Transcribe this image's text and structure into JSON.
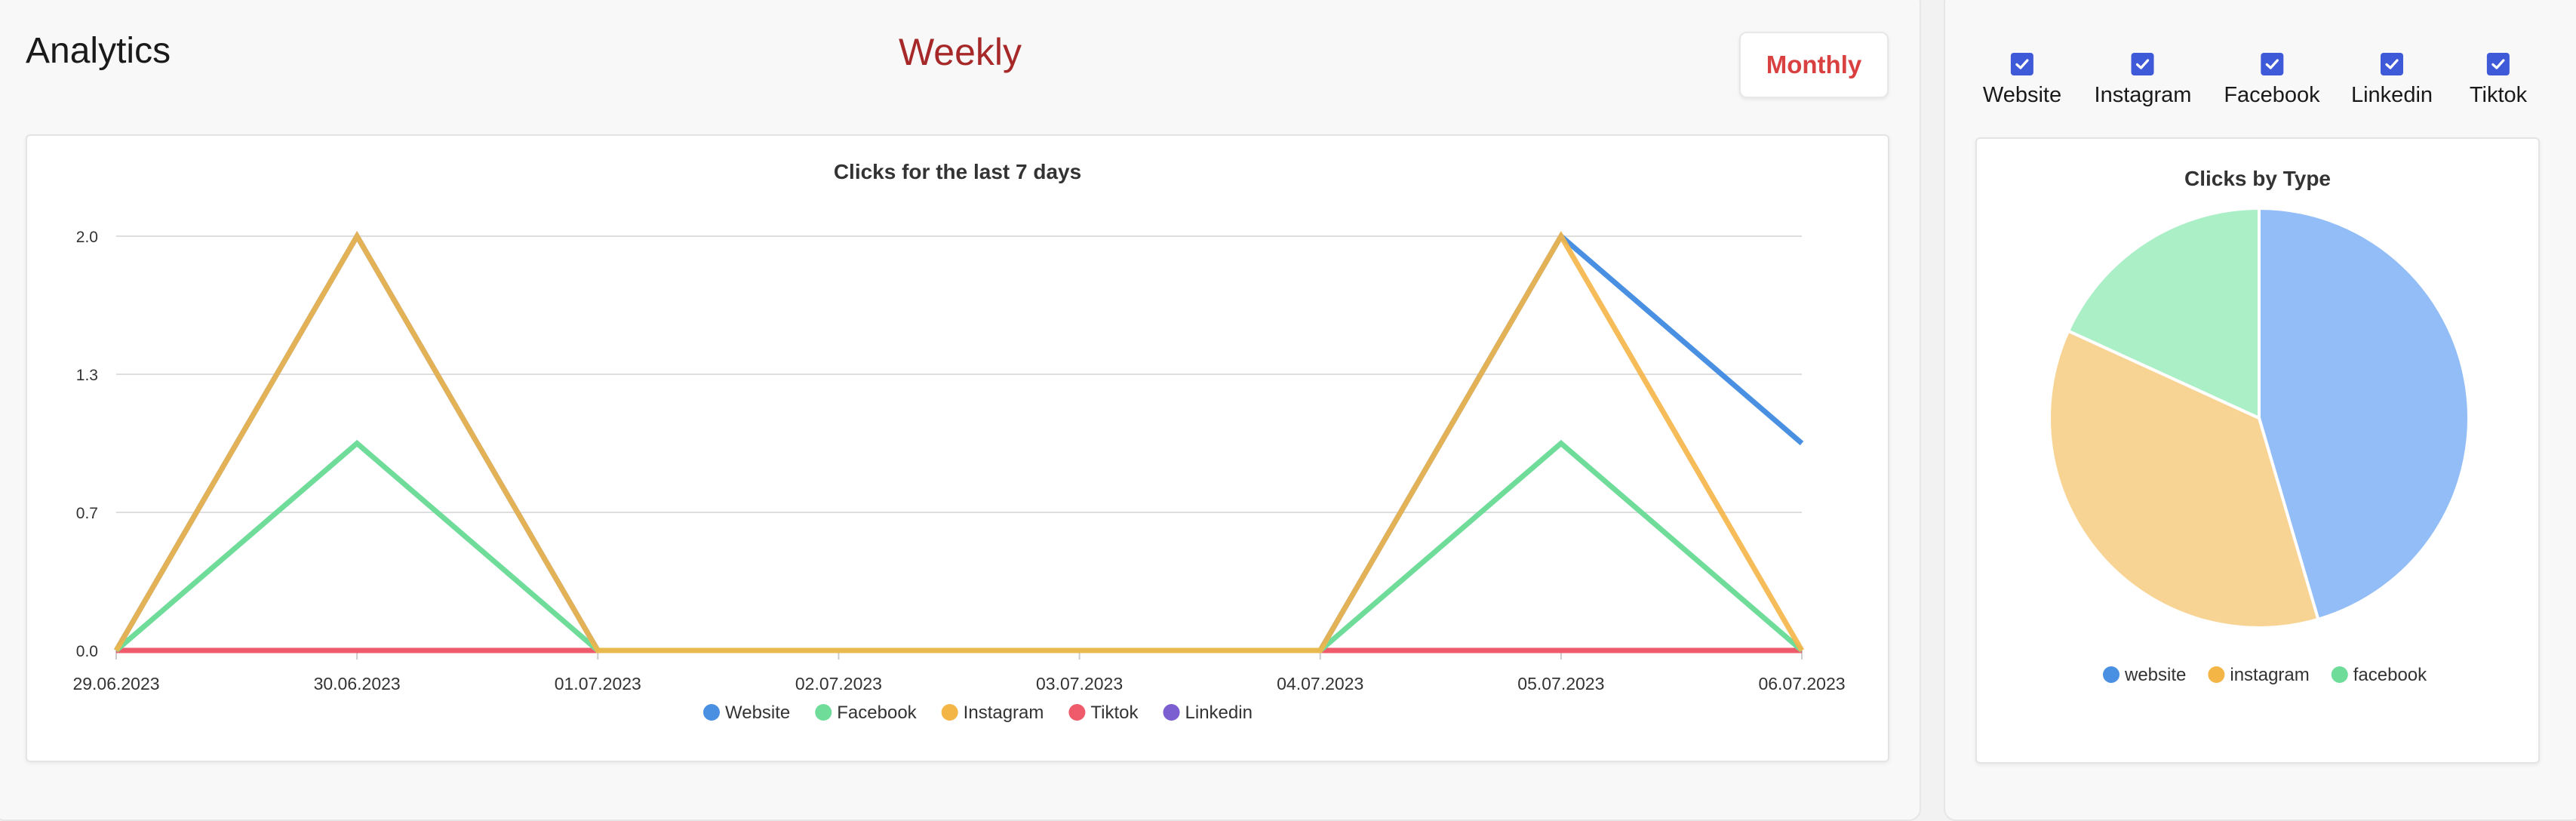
{
  "header": {
    "title": "Analytics",
    "period_label": "Weekly",
    "monthly_button": "Monthly"
  },
  "filters": [
    {
      "label": "Website",
      "checked": true
    },
    {
      "label": "Instagram",
      "checked": true
    },
    {
      "label": "Facebook",
      "checked": true
    },
    {
      "label": "Linkedin",
      "checked": true
    },
    {
      "label": "Tiktok",
      "checked": true
    }
  ],
  "chart_data": [
    {
      "type": "line",
      "title": "Clicks for the last 7 days",
      "categories": [
        "29.06.2023",
        "30.06.2023",
        "01.07.2023",
        "02.07.2023",
        "03.07.2023",
        "04.07.2023",
        "05.07.2023",
        "06.07.2023"
      ],
      "yticks": [
        "2.0",
        "1.3",
        "0.7",
        "0.0"
      ],
      "ylim": [
        0,
        2
      ],
      "grid": true,
      "legend_position": "bottom",
      "series": [
        {
          "name": "Website",
          "color": "#4a90e2",
          "values": [
            0,
            2,
            0,
            0,
            0,
            0,
            2,
            1
          ]
        },
        {
          "name": "Facebook",
          "color": "#6fdc9a",
          "values": [
            0,
            1,
            0,
            0,
            0,
            0,
            1,
            0
          ]
        },
        {
          "name": "Instagram",
          "color": "#f4b547",
          "values": [
            0,
            2,
            0,
            0,
            0,
            0,
            2,
            0
          ]
        },
        {
          "name": "Tiktok",
          "color": "#ef5b6b",
          "values": [
            0,
            0,
            0,
            0,
            0,
            0,
            0,
            0
          ]
        },
        {
          "name": "Linkedin",
          "color": "#7b5fd0",
          "values": [
            0,
            0,
            0,
            0,
            0,
            0,
            0,
            0
          ]
        }
      ]
    },
    {
      "type": "pie",
      "title": "Clicks by Type",
      "legend_position": "bottom",
      "slices": [
        {
          "label": "website",
          "value": 5,
          "color": "#93bdf6",
          "legend_color": "#4a90e2"
        },
        {
          "label": "instagram",
          "value": 4,
          "color": "#f8d494",
          "legend_color": "#f4b547"
        },
        {
          "label": "facebook",
          "value": 2,
          "color": "#abefc7",
          "legend_color": "#6fdc9a"
        }
      ]
    }
  ]
}
